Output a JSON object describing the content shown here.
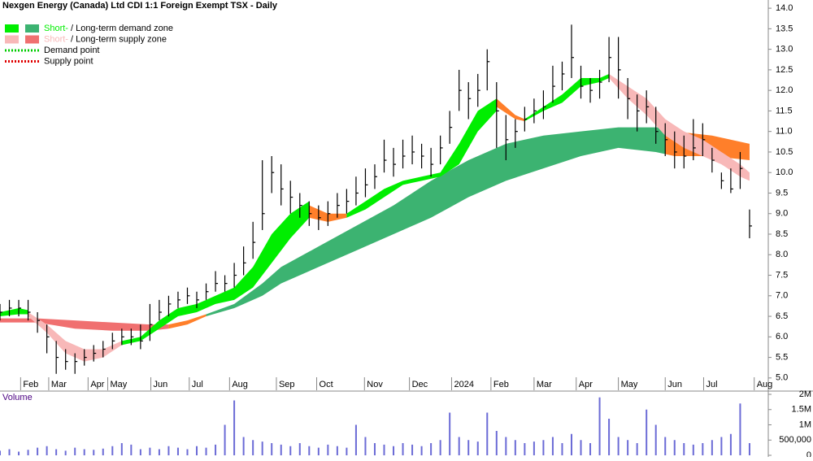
{
  "chart_data": {
    "type": "candlestick",
    "title": "Nexgen Energy (Canada) Ltd CDI 1:1 Foreign Exempt TSX - Daily",
    "legend": [
      {
        "short": "Short-",
        "long": "/ Long-term demand zone",
        "colors": [
          "#00ee00",
          "#3cb371"
        ]
      },
      {
        "short": "Short-",
        "long": "/ Long-term supply zone",
        "colors": [
          "#f8b8b8",
          "#f07070"
        ]
      },
      {
        "label": "Demand point",
        "color": "#00cc00"
      },
      {
        "label": "Supply point",
        "color": "#e00000"
      }
    ],
    "xlim": [
      0,
      82
    ],
    "xticks": [
      {
        "value": 2.2,
        "label": "Feb"
      },
      {
        "value": 5.2,
        "label": "Mar"
      },
      {
        "value": 9.4,
        "label": "Apr"
      },
      {
        "value": 11.5,
        "label": "May"
      },
      {
        "value": 16.1,
        "label": "Jun"
      },
      {
        "value": 20.2,
        "label": "Jul"
      },
      {
        "value": 24.5,
        "label": "Aug"
      },
      {
        "value": 29.5,
        "label": "Sep"
      },
      {
        "value": 33.8,
        "label": "Oct"
      },
      {
        "value": 38.9,
        "label": "Nov"
      },
      {
        "value": 43.7,
        "label": "Dec"
      },
      {
        "value": 48.2,
        "label": "2024"
      },
      {
        "value": 52.4,
        "label": "Feb"
      },
      {
        "value": 57,
        "label": "Mar"
      },
      {
        "value": 61.5,
        "label": "Apr"
      },
      {
        "value": 66,
        "label": "May"
      },
      {
        "value": 71,
        "label": "Jun"
      },
      {
        "value": 75.1,
        "label": "Jul"
      },
      {
        "value": 80.5,
        "label": "Aug"
      }
    ],
    "ylim": [
      4.7,
      14.2
    ],
    "yticks": [
      {
        "value": 5,
        "label": "5.0"
      },
      5.5,
      {
        "value": 6,
        "label": "6.0"
      },
      6.5,
      {
        "value": 7,
        "label": "7.0"
      },
      7.5,
      {
        "value": 8,
        "label": "8.0"
      },
      8.5,
      {
        "value": 9,
        "label": "9.0"
      },
      9.5,
      {
        "value": 10,
        "label": "10.0"
      },
      10.5,
      {
        "value": 11,
        "label": "11.0"
      },
      11.5,
      {
        "value": 12,
        "label": "12.0"
      },
      12.5,
      {
        "value": 13,
        "label": "13.0"
      },
      13.5,
      {
        "value": 14,
        "label": "14.0"
      }
    ],
    "x": [
      0,
      1,
      2,
      3,
      4,
      5,
      6,
      7,
      8,
      9,
      10,
      11,
      12,
      13,
      14,
      15,
      16,
      17,
      18,
      19,
      20,
      21,
      22,
      23,
      24,
      25,
      26,
      27,
      28,
      29,
      30,
      31,
      32,
      33,
      34,
      35,
      36,
      37,
      38,
      39,
      40,
      41,
      42,
      43,
      44,
      45,
      46,
      47,
      48,
      49,
      50,
      51,
      52,
      53,
      54,
      55,
      56,
      57,
      58,
      59,
      60,
      61,
      62,
      63,
      64,
      65,
      66,
      67,
      68,
      69,
      70,
      71,
      72,
      73,
      74,
      75,
      76,
      77,
      78,
      79,
      80
    ],
    "high": [
      6.8,
      6.9,
      6.9,
      6.9,
      6.6,
      6.3,
      5.9,
      5.7,
      5.6,
      5.7,
      5.8,
      5.9,
      6.1,
      6.2,
      6.2,
      6.3,
      6.8,
      6.9,
      7.0,
      7.1,
      7.2,
      7.1,
      7.3,
      7.6,
      7.5,
      7.8,
      8.2,
      8.8,
      10.3,
      10.4,
      10.2,
      9.8,
      9.5,
      9.3,
      9.2,
      9.3,
      9.5,
      9.6,
      9.9,
      10.1,
      10.2,
      10.8,
      10.6,
      10.8,
      10.9,
      10.7,
      10.6,
      10.9,
      11.5,
      12.5,
      12.2,
      12.4,
      13.0,
      12.2,
      11.4,
      11.3,
      11.6,
      11.8,
      12.0,
      12.6,
      12.7,
      13.6,
      12.6,
      12.3,
      12.5,
      13.3,
      13.3,
      12.3,
      11.9,
      12.0,
      11.6,
      11.2,
      11.0,
      10.9,
      11.3,
      11.2,
      10.6,
      10.0,
      10.1,
      10.5,
      9.1
    ],
    "low": [
      6.4,
      6.5,
      6.5,
      6.4,
      6.1,
      5.6,
      5.1,
      5.2,
      5.1,
      5.3,
      5.4,
      5.5,
      5.7,
      5.8,
      5.8,
      5.7,
      5.9,
      6.4,
      6.5,
      6.7,
      6.8,
      6.7,
      6.9,
      7.1,
      7.1,
      7.2,
      7.5,
      7.9,
      8.6,
      9.5,
      9.2,
      9.0,
      8.9,
      8.7,
      8.6,
      8.7,
      8.9,
      9.0,
      9.2,
      9.4,
      9.6,
      10.0,
      9.9,
      10.1,
      10.2,
      10.1,
      9.9,
      10.2,
      10.7,
      11.5,
      11.3,
      11.6,
      12.0,
      10.6,
      10.3,
      10.6,
      11.0,
      11.2,
      11.3,
      11.7,
      12.0,
      12.3,
      11.8,
      11.7,
      11.8,
      12.2,
      11.8,
      11.3,
      11.0,
      11.2,
      10.7,
      10.4,
      10.1,
      10.1,
      10.3,
      10.4,
      10.0,
      9.6,
      9.5,
      9.6,
      8.4
    ],
    "close": [
      6.6,
      6.7,
      6.7,
      6.6,
      6.4,
      6.0,
      5.5,
      5.4,
      5.4,
      5.5,
      5.6,
      5.7,
      5.9,
      6.0,
      6.0,
      5.9,
      6.3,
      6.6,
      6.8,
      6.9,
      7.0,
      6.9,
      7.1,
      7.3,
      7.3,
      7.5,
      7.8,
      8.3,
      9.0,
      10.0,
      9.6,
      9.4,
      9.2,
      9.0,
      8.9,
      9.0,
      9.2,
      9.3,
      9.5,
      9.7,
      9.9,
      10.3,
      10.2,
      10.4,
      10.5,
      10.4,
      10.2,
      10.6,
      11.1,
      12.0,
      11.8,
      12.0,
      12.7,
      11.5,
      10.8,
      11.0,
      11.3,
      11.5,
      11.6,
      12.1,
      12.4,
      12.8,
      12.1,
      12.0,
      12.2,
      12.8,
      12.5,
      11.8,
      11.5,
      11.6,
      11.0,
      10.8,
      10.5,
      10.4,
      10.6,
      10.8,
      10.3,
      9.8,
      9.6,
      10.1,
      8.7
    ],
    "bands": [
      {
        "color": "#f07070",
        "x": [
          0,
          4,
          8,
          12,
          16,
          18
        ],
        "upper": [
          6.45,
          6.45,
          6.4,
          6.35,
          6.3,
          6.3
        ],
        "lower": [
          6.35,
          6.35,
          6.2,
          6.15,
          6.15,
          6.2
        ]
      },
      {
        "color": "#ff7f2a",
        "x": [
          18,
          20,
          22
        ],
        "upper": [
          6.3,
          6.4,
          6.55
        ],
        "lower": [
          6.2,
          6.3,
          6.5
        ]
      },
      {
        "color": "#3cb371",
        "x": [
          22,
          25,
          28,
          30,
          34,
          38,
          42,
          46,
          50,
          54,
          58,
          62,
          66,
          70,
          71
        ],
        "upper": [
          6.55,
          6.8,
          7.3,
          7.7,
          8.2,
          8.7,
          9.2,
          9.8,
          10.3,
          10.7,
          10.9,
          11.0,
          11.1,
          11.1,
          11.1
        ],
        "lower": [
          6.5,
          6.7,
          7.0,
          7.3,
          7.7,
          8.1,
          8.5,
          8.9,
          9.4,
          9.8,
          10.1,
          10.4,
          10.6,
          10.5,
          10.45
        ]
      },
      {
        "color": "#ff7f2a",
        "x": [
          71,
          72,
          76,
          80
        ],
        "upper": [
          11.1,
          11.0,
          10.9,
          10.7
        ],
        "lower": [
          10.45,
          10.4,
          10.4,
          10.3
        ]
      },
      {
        "color": "#00ee00",
        "x": [
          0,
          2,
          3
        ],
        "upper": [
          6.6,
          6.7,
          6.65
        ],
        "lower": [
          6.5,
          6.55,
          6.55
        ]
      },
      {
        "color": "#f8b8b8",
        "x": [
          3,
          5,
          7,
          9,
          11,
          13
        ],
        "upper": [
          6.6,
          6.3,
          5.9,
          5.7,
          5.7,
          5.9
        ],
        "lower": [
          6.5,
          6.1,
          5.6,
          5.4,
          5.5,
          5.8
        ]
      },
      {
        "color": "#00ee00",
        "x": [
          13,
          15,
          17,
          19,
          21,
          23,
          25,
          27,
          29,
          31,
          33
        ],
        "upper": [
          5.9,
          6.0,
          6.4,
          6.7,
          6.8,
          7.0,
          7.2,
          7.7,
          8.5,
          9.0,
          9.3
        ],
        "lower": [
          5.8,
          5.9,
          6.2,
          6.5,
          6.6,
          6.8,
          6.9,
          7.2,
          7.8,
          8.4,
          8.9
        ]
      },
      {
        "color": "#ff7f2a",
        "x": [
          33,
          35,
          37
        ],
        "upper": [
          9.2,
          9.0,
          9.0
        ],
        "lower": [
          8.9,
          8.8,
          8.9
        ]
      },
      {
        "color": "#00ee00",
        "x": [
          37,
          39,
          41,
          43,
          45,
          47,
          49,
          51,
          53
        ],
        "upper": [
          9.0,
          9.3,
          9.6,
          9.8,
          9.9,
          10.0,
          10.7,
          11.5,
          11.8
        ],
        "lower": [
          8.9,
          9.1,
          9.4,
          9.7,
          9.8,
          9.9,
          10.2,
          11.0,
          11.5
        ]
      },
      {
        "color": "#ff7f2a",
        "x": [
          53,
          55,
          56
        ],
        "upper": [
          11.8,
          11.4,
          11.3
        ],
        "lower": [
          11.6,
          11.3,
          11.25
        ]
      },
      {
        "color": "#00ee00",
        "x": [
          56,
          58,
          60,
          62,
          64,
          65
        ],
        "upper": [
          11.3,
          11.6,
          11.9,
          12.3,
          12.3,
          12.4
        ],
        "lower": [
          11.25,
          11.5,
          11.7,
          12.1,
          12.2,
          12.3
        ]
      },
      {
        "color": "#f8b8b8",
        "x": [
          65,
          67,
          69,
          71,
          73,
          75,
          77,
          79,
          80
        ],
        "upper": [
          12.4,
          12.1,
          11.8,
          11.3,
          11.0,
          10.8,
          10.5,
          10.2,
          10.0
        ],
        "lower": [
          12.3,
          11.8,
          11.4,
          10.9,
          10.6,
          10.4,
          10.2,
          9.9,
          9.8
        ]
      }
    ],
    "volume_label": "Volume",
    "volume_color": "#6b6bd6",
    "volume": [
      150000,
      200000,
      120000,
      180000,
      250000,
      300000,
      200000,
      150000,
      250000,
      200000,
      180000,
      220000,
      300000,
      400000,
      350000,
      200000,
      250000,
      200000,
      300000,
      250000,
      200000,
      300000,
      250000,
      350000,
      1000000,
      1800000,
      600000,
      500000,
      450000,
      400000,
      350000,
      300000,
      400000,
      300000,
      250000,
      350000,
      300000,
      250000,
      1000000,
      600000,
      400000,
      350000,
      300000,
      400000,
      350000,
      300000,
      400000,
      500000,
      1400000,
      600000,
      500000,
      450000,
      1400000,
      800000,
      600000,
      500000,
      400000,
      450000,
      500000,
      600000,
      400000,
      700000,
      500000,
      400000,
      1900000,
      1200000,
      600000,
      500000,
      400000,
      1500000,
      1000000,
      600000,
      500000,
      400000,
      350000,
      400000,
      500000,
      600000,
      700000,
      1700000,
      400000
    ],
    "vlim": [
      0,
      2000000
    ],
    "vticks": [
      0,
      {
        "value": 500000,
        "label": "500,000"
      },
      {
        "value": 1000000,
        "label": "1M"
      },
      {
        "value": 1500000,
        "label": "1.5M"
      },
      {
        "value": 2000000,
        "label": "2M"
      }
    ]
  }
}
